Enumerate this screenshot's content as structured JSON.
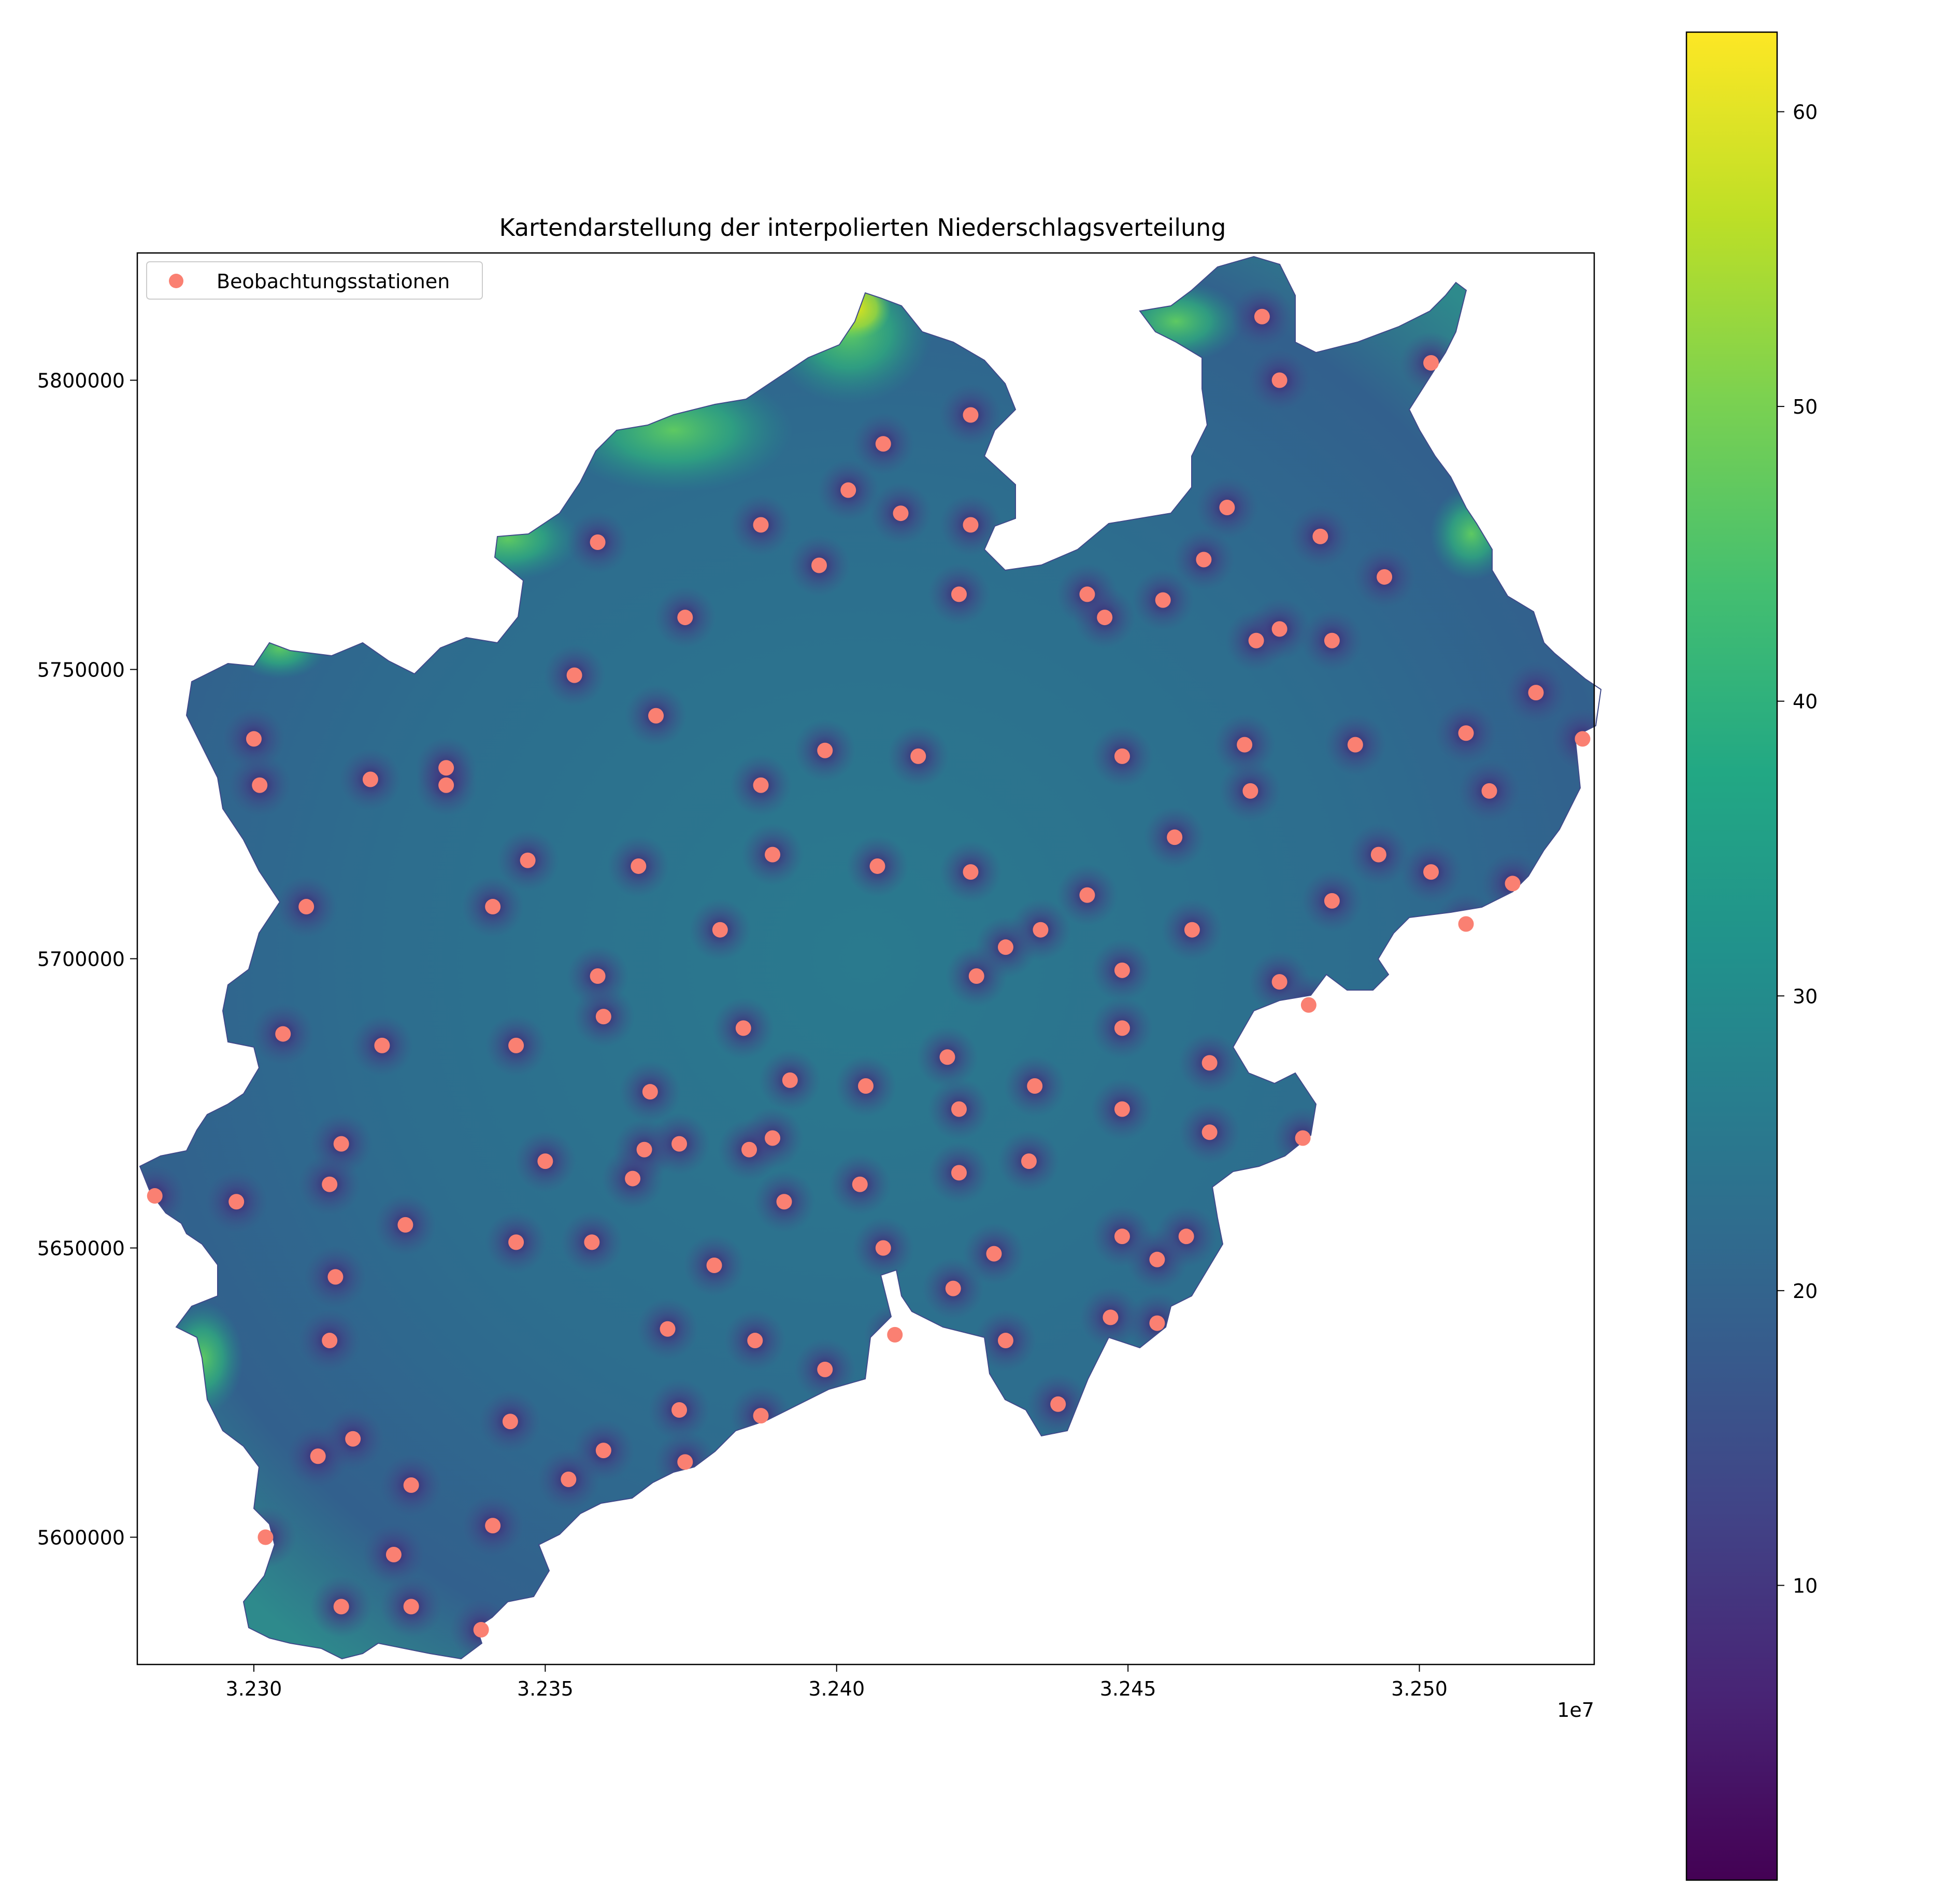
{
  "title": "Kartendarstellung der interpolierten Niederschlagsverteilung",
  "legend": {
    "label": "Beobachtungsstationen",
    "marker_color": "#fa8072",
    "placement": "upper left"
  },
  "x_offset_label": "1e7",
  "x_ticks": [
    "3.230",
    "3.235",
    "3.240",
    "3.245",
    "3.250"
  ],
  "y_ticks": [
    "5600000",
    "5650000",
    "5700000",
    "5750000",
    "5800000"
  ],
  "colorbar": {
    "colormap": "viridis",
    "ticks": [
      "10",
      "20",
      "30",
      "40",
      "50",
      "60"
    ],
    "range": [
      0,
      62.7
    ]
  },
  "chart_data": {
    "type": "scatter",
    "title": "Kartendarstellung der interpolierten Niederschlagsverteilung",
    "x_range": [
      32280000,
      32530000
    ],
    "y_range": [
      5578000,
      5822000
    ],
    "x_scale_label": "1e7",
    "surface": "interpolated precipitation field (viridis), low near stations, higher away from stations",
    "series": [
      {
        "name": "Beobachtungsstationen",
        "color": "#fa8072",
        "points": [
          [
            32473000,
            5811000
          ],
          [
            32476000,
            5800000
          ],
          [
            32502000,
            5803000
          ],
          [
            32423000,
            5794000
          ],
          [
            32408000,
            5789000
          ],
          [
            32402000,
            5781000
          ],
          [
            32411000,
            5777000
          ],
          [
            32387000,
            5775000
          ],
          [
            32423000,
            5775000
          ],
          [
            32467000,
            5778000
          ],
          [
            32359000,
            5772000
          ],
          [
            32397000,
            5768000
          ],
          [
            32463000,
            5769000
          ],
          [
            32483000,
            5773000
          ],
          [
            32494000,
            5766000
          ],
          [
            32421000,
            5763000
          ],
          [
            32443000,
            5763000
          ],
          [
            32456000,
            5762000
          ],
          [
            32374000,
            5759000
          ],
          [
            32446000,
            5759000
          ],
          [
            32472000,
            5755000
          ],
          [
            32476000,
            5757000
          ],
          [
            32485000,
            5755000
          ],
          [
            32355000,
            5749000
          ],
          [
            32369000,
            5742000
          ],
          [
            32520000,
            5746000
          ],
          [
            32300000,
            5738000
          ],
          [
            32301000,
            5730000
          ],
          [
            32320000,
            5731000
          ],
          [
            32333000,
            5733000
          ],
          [
            32333000,
            5730000
          ],
          [
            32398000,
            5736000
          ],
          [
            32414000,
            5735000
          ],
          [
            32387000,
            5730000
          ],
          [
            32449000,
            5735000
          ],
          [
            32470000,
            5737000
          ],
          [
            32471000,
            5729000
          ],
          [
            32489000,
            5737000
          ],
          [
            32508000,
            5739000
          ],
          [
            32512000,
            5729000
          ],
          [
            32528000,
            5738000
          ],
          [
            32458000,
            5721000
          ],
          [
            32389000,
            5718000
          ],
          [
            32347000,
            5717000
          ],
          [
            32366000,
            5716000
          ],
          [
            32407000,
            5716000
          ],
          [
            32423000,
            5715000
          ],
          [
            32493000,
            5718000
          ],
          [
            32502000,
            5715000
          ],
          [
            32516000,
            5713000
          ],
          [
            32309000,
            5709000
          ],
          [
            32341000,
            5709000
          ],
          [
            32443000,
            5711000
          ],
          [
            32485000,
            5710000
          ],
          [
            32461000,
            5705000
          ],
          [
            32508000,
            5706000
          ],
          [
            32380000,
            5705000
          ],
          [
            32435000,
            5705000
          ],
          [
            32429000,
            5702000
          ],
          [
            32359000,
            5697000
          ],
          [
            32424000,
            5697000
          ],
          [
            32449000,
            5698000
          ],
          [
            32476000,
            5696000
          ],
          [
            32481000,
            5692000
          ],
          [
            32360000,
            5690000
          ],
          [
            32384000,
            5688000
          ],
          [
            32449000,
            5688000
          ],
          [
            32305000,
            5687000
          ],
          [
            32322000,
            5685000
          ],
          [
            32345000,
            5685000
          ],
          [
            32419000,
            5683000
          ],
          [
            32464000,
            5682000
          ],
          [
            32392000,
            5679000
          ],
          [
            32405000,
            5678000
          ],
          [
            32434000,
            5678000
          ],
          [
            32368000,
            5677000
          ],
          [
            32421000,
            5674000
          ],
          [
            32449000,
            5674000
          ],
          [
            32464000,
            5670000
          ],
          [
            32480000,
            5669000
          ],
          [
            32389000,
            5669000
          ],
          [
            32315000,
            5668000
          ],
          [
            32367000,
            5667000
          ],
          [
            32373000,
            5668000
          ],
          [
            32385000,
            5667000
          ],
          [
            32350000,
            5665000
          ],
          [
            32433000,
            5665000
          ],
          [
            32313000,
            5661000
          ],
          [
            32365000,
            5662000
          ],
          [
            32404000,
            5661000
          ],
          [
            32421000,
            5663000
          ],
          [
            32283000,
            5659000
          ],
          [
            32297000,
            5658000
          ],
          [
            32391000,
            5658000
          ],
          [
            32326000,
            5654000
          ],
          [
            32345000,
            5651000
          ],
          [
            32358000,
            5651000
          ],
          [
            32449000,
            5652000
          ],
          [
            32460000,
            5652000
          ],
          [
            32408000,
            5650000
          ],
          [
            32427000,
            5649000
          ],
          [
            32455000,
            5648000
          ],
          [
            32379000,
            5647000
          ],
          [
            32314000,
            5645000
          ],
          [
            32420000,
            5643000
          ],
          [
            32447000,
            5638000
          ],
          [
            32455000,
            5637000
          ],
          [
            32371000,
            5636000
          ],
          [
            32410000,
            5635000
          ],
          [
            32313000,
            5634000
          ],
          [
            32386000,
            5634000
          ],
          [
            32429000,
            5634000
          ],
          [
            32398000,
            5629000
          ],
          [
            32438000,
            5623000
          ],
          [
            32344000,
            5620000
          ],
          [
            32373000,
            5622000
          ],
          [
            32387000,
            5621000
          ],
          [
            32317000,
            5617000
          ],
          [
            32311000,
            5614000
          ],
          [
            32360000,
            5615000
          ],
          [
            32374000,
            5613000
          ],
          [
            32354000,
            5610000
          ],
          [
            32327000,
            5609000
          ],
          [
            32341000,
            5602000
          ],
          [
            32302000,
            5600000
          ],
          [
            32324000,
            5597000
          ],
          [
            32315000,
            5588000
          ],
          [
            32327000,
            5588000
          ],
          [
            32339000,
            5584000
          ]
        ]
      }
    ]
  }
}
